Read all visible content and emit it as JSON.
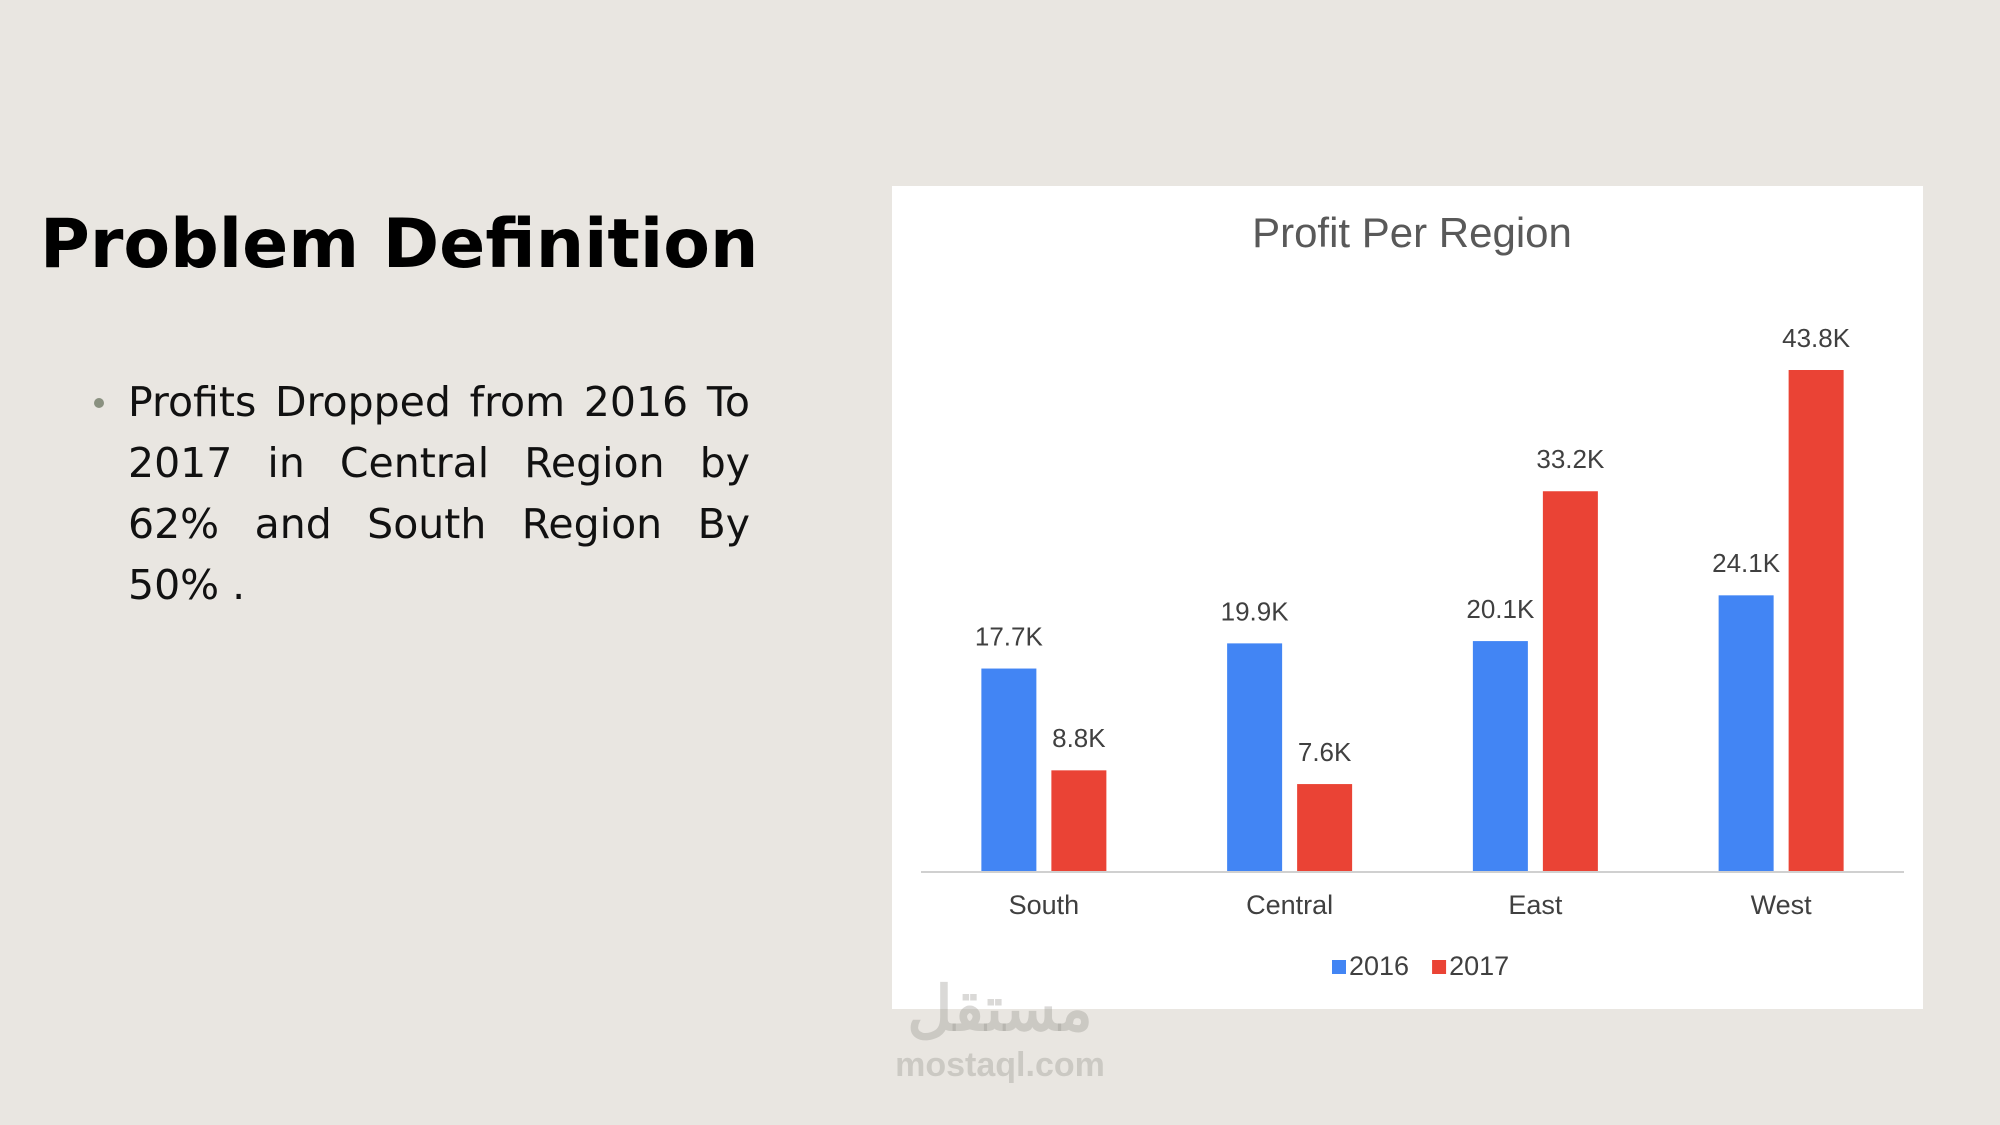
{
  "header": {
    "title": "Problem Definition"
  },
  "bullets": [
    "Profits Dropped from 2016 To 2017 in Central  Region by 62% and South Region By 50% ."
  ],
  "watermark": {
    "logo": "مستقل",
    "site": "mostaql.com"
  },
  "chart_data": {
    "type": "bar",
    "title": "Profit Per Region",
    "categories": [
      "South",
      "Central",
      "East",
      "West"
    ],
    "series": [
      {
        "name": "2016",
        "color": "#4285f4",
        "values": [
          17700,
          19900,
          20100,
          24100
        ],
        "value_labels": [
          "17.7K",
          "19.9K",
          "20.1K",
          "24.1K"
        ]
      },
      {
        "name": "2017",
        "color": "#ea4335",
        "values": [
          8800,
          7600,
          33200,
          43800
        ],
        "value_labels": [
          "8.8K",
          "7.6K",
          "33.2K",
          "43.8K"
        ]
      }
    ],
    "legend": "bottom"
  }
}
